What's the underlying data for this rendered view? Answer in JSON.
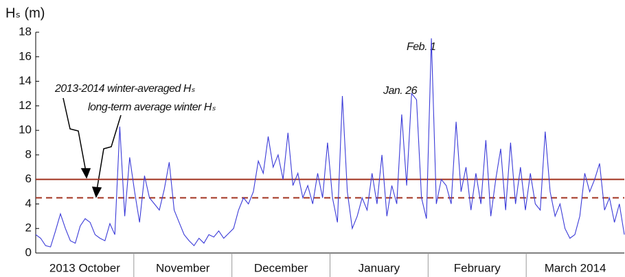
{
  "chart_data": {
    "type": "line",
    "y_label": "Hₛ (m)",
    "months": [
      "2013  October",
      "November",
      "December",
      "January",
      "February",
      "March  2014"
    ],
    "values": [
      1.5,
      1.2,
      0.6,
      0.5,
      1.8,
      3.2,
      2.0,
      1.0,
      0.8,
      2.2,
      2.8,
      2.5,
      1.5,
      1.2,
      1.0,
      2.4,
      1.5,
      10.3,
      3.0,
      7.8,
      5.0,
      2.5,
      6.3,
      4.5,
      4.0,
      3.5,
      5.2,
      7.4,
      3.5,
      2.5,
      1.5,
      1.0,
      0.6,
      1.2,
      0.8,
      1.5,
      1.3,
      1.8,
      1.2,
      1.6,
      2.0,
      3.5,
      4.5,
      4.0,
      5.0,
      7.5,
      6.5,
      9.5,
      7.0,
      8.0,
      6.0,
      9.8,
      5.5,
      6.5,
      4.5,
      5.5,
      4.0,
      6.5,
      4.5,
      9.0,
      4.5,
      2.5,
      12.8,
      5.0,
      2.0,
      3.0,
      4.5,
      3.5,
      6.5,
      4.0,
      8.0,
      3.0,
      5.5,
      4.0,
      11.3,
      5.5,
      13.0,
      12.5,
      4.5,
      2.8,
      17.5,
      4.0,
      6.0,
      5.5,
      4.0,
      10.7,
      5.0,
      7.0,
      3.5,
      6.5,
      4.0,
      9.2,
      3.0,
      6.0,
      8.5,
      3.5,
      9.0,
      4.0,
      7.0,
      3.5,
      6.5,
      4.0,
      3.5,
      9.9,
      5.0,
      3.0,
      4.0,
      2.0,
      1.2,
      1.5,
      3.0,
      6.5,
      5.0,
      6.0,
      7.3,
      3.5,
      4.5,
      2.5,
      4.0,
      1.5
    ],
    "color": "#3a3ad8",
    "reference_lines": [
      {
        "label": "2013-2014 winter-averaged Hₛ",
        "value": 6.0,
        "style": "solid",
        "color": "#a0301e"
      },
      {
        "label": "long-term average winter Hₛ",
        "value": 4.5,
        "style": "dashed",
        "color": "#a0301e"
      }
    ],
    "annotations": [
      "Feb. 1",
      "Jan. 26"
    ],
    "ylim": [
      0,
      18
    ],
    "yticks": [
      0,
      2,
      4,
      6,
      8,
      10,
      12,
      14,
      16,
      18
    ]
  }
}
